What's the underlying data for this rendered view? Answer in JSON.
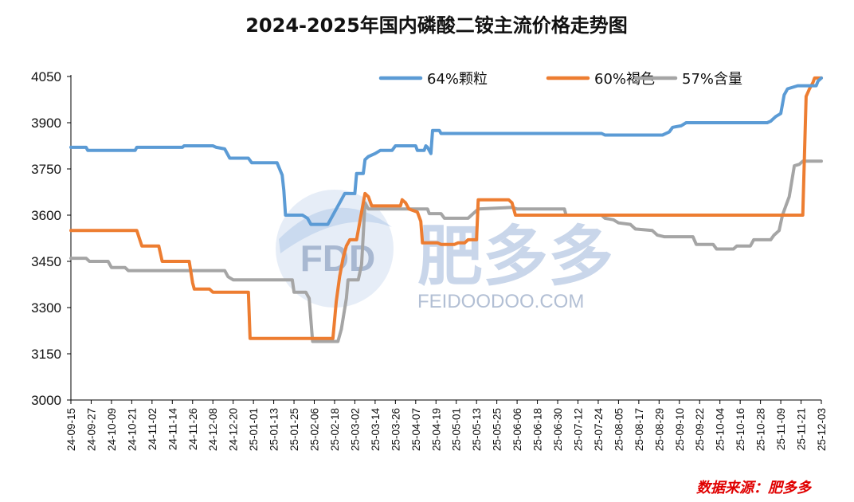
{
  "chart_data": {
    "type": "line",
    "title": "2024-2025年国内磷酸二铵主流价格走势图",
    "source": "数据来源：肥多多",
    "ylim": [
      3000,
      4050
    ],
    "yticks": [
      3000,
      3150,
      3300,
      3450,
      3600,
      3750,
      3900,
      4050
    ],
    "xlim": [
      "2024-09-15",
      "2025-12-03"
    ],
    "xtick_labels": [
      "24-09-15",
      "24-09-27",
      "24-10-09",
      "24-10-21",
      "24-11-02",
      "24-11-14",
      "24-11-26",
      "24-12-08",
      "24-12-20",
      "25-01-01",
      "25-01-13",
      "25-01-25",
      "25-02-06",
      "25-02-18",
      "25-03-02",
      "25-03-14",
      "25-03-26",
      "25-04-07",
      "25-04-19",
      "25-05-01",
      "25-05-13",
      "25-05-25",
      "25-06-06",
      "25-06-18",
      "25-06-30",
      "25-07-12",
      "25-07-24",
      "25-08-05",
      "25-08-17",
      "25-08-29",
      "25-09-10",
      "25-09-22",
      "25-10-04",
      "25-10-16",
      "25-10-28",
      "25-11-09",
      "25-11-21",
      "25-12-03"
    ],
    "grid": false,
    "legend_position": "top-right",
    "series": [
      {
        "name": "64%颗粒",
        "color": "#5b9bd5",
        "points": [
          [
            "2024-09-15",
            3820
          ],
          [
            "2024-09-24",
            3820
          ],
          [
            "2024-09-25",
            3810
          ],
          [
            "2024-10-23",
            3810
          ],
          [
            "2024-10-24",
            3820
          ],
          [
            "2024-11-20",
            3820
          ],
          [
            "2024-11-21",
            3825
          ],
          [
            "2024-12-08",
            3825
          ],
          [
            "2024-12-10",
            3820
          ],
          [
            "2024-12-15",
            3815
          ],
          [
            "2024-12-18",
            3785
          ],
          [
            "2024-12-29",
            3785
          ],
          [
            "2024-12-31",
            3770
          ],
          [
            "2025-01-15",
            3770
          ],
          [
            "2025-01-18",
            3730
          ],
          [
            "2025-01-19",
            3680
          ],
          [
            "2025-01-20",
            3600
          ],
          [
            "2025-01-30",
            3600
          ],
          [
            "2025-02-02",
            3590
          ],
          [
            "2025-02-04",
            3570
          ],
          [
            "2025-02-14",
            3570
          ],
          [
            "2025-02-16",
            3590
          ],
          [
            "2025-02-19",
            3620
          ],
          [
            "2025-02-22",
            3650
          ],
          [
            "2025-02-24",
            3670
          ],
          [
            "2025-03-02",
            3670
          ],
          [
            "2025-03-03",
            3735
          ],
          [
            "2025-03-07",
            3735
          ],
          [
            "2025-03-08",
            3780
          ],
          [
            "2025-03-10",
            3790
          ],
          [
            "2025-03-14",
            3800
          ],
          [
            "2025-03-17",
            3810
          ],
          [
            "2025-03-24",
            3810
          ],
          [
            "2025-03-26",
            3825
          ],
          [
            "2025-04-07",
            3825
          ],
          [
            "2025-04-08",
            3810
          ],
          [
            "2025-04-12",
            3810
          ],
          [
            "2025-04-13",
            3825
          ],
          [
            "2025-04-14",
            3820
          ],
          [
            "2025-04-16",
            3800
          ],
          [
            "2025-04-17",
            3875
          ],
          [
            "2025-04-21",
            3875
          ],
          [
            "2025-04-22",
            3865
          ],
          [
            "2025-07-26",
            3865
          ],
          [
            "2025-07-28",
            3860
          ],
          [
            "2025-08-31",
            3860
          ],
          [
            "2025-09-04",
            3870
          ],
          [
            "2025-09-06",
            3885
          ],
          [
            "2025-09-11",
            3890
          ],
          [
            "2025-09-14",
            3900
          ],
          [
            "2025-11-01",
            3900
          ],
          [
            "2025-11-03",
            3905
          ],
          [
            "2025-11-06",
            3920
          ],
          [
            "2025-11-09",
            3930
          ],
          [
            "2025-11-11",
            3990
          ],
          [
            "2025-11-13",
            4010
          ],
          [
            "2025-11-19",
            4020
          ],
          [
            "2025-11-30",
            4020
          ],
          [
            "2025-12-01",
            4035
          ],
          [
            "2025-12-03",
            4045
          ]
        ]
      },
      {
        "name": "60%褐色",
        "color": "#ed7d31",
        "points": [
          [
            "2024-09-15",
            3550
          ],
          [
            "2024-10-24",
            3550
          ],
          [
            "2024-10-27",
            3500
          ],
          [
            "2024-11-06",
            3500
          ],
          [
            "2024-11-08",
            3450
          ],
          [
            "2024-11-24",
            3450
          ],
          [
            "2024-11-26",
            3380
          ],
          [
            "2024-11-27",
            3360
          ],
          [
            "2024-12-06",
            3360
          ],
          [
            "2024-12-08",
            3350
          ],
          [
            "2024-12-29",
            3350
          ],
          [
            "2024-12-30",
            3200
          ],
          [
            "2025-02-17",
            3200
          ],
          [
            "2025-02-19",
            3320
          ],
          [
            "2025-02-21",
            3400
          ],
          [
            "2025-02-23",
            3460
          ],
          [
            "2025-02-25",
            3500
          ],
          [
            "2025-02-27",
            3520
          ],
          [
            "2025-03-03",
            3520
          ],
          [
            "2025-03-05",
            3580
          ],
          [
            "2025-03-07",
            3640
          ],
          [
            "2025-03-08",
            3670
          ],
          [
            "2025-03-10",
            3660
          ],
          [
            "2025-03-12",
            3630
          ],
          [
            "2025-03-29",
            3630
          ],
          [
            "2025-03-30",
            3650
          ],
          [
            "2025-04-01",
            3640
          ],
          [
            "2025-04-03",
            3620
          ],
          [
            "2025-04-08",
            3610
          ],
          [
            "2025-04-10",
            3580
          ],
          [
            "2025-04-11",
            3510
          ],
          [
            "2025-04-20",
            3510
          ],
          [
            "2025-04-22",
            3505
          ],
          [
            "2025-04-30",
            3505
          ],
          [
            "2025-05-02",
            3510
          ],
          [
            "2025-05-06",
            3510
          ],
          [
            "2025-05-08",
            3520
          ],
          [
            "2025-05-13",
            3520
          ],
          [
            "2025-05-14",
            3650
          ],
          [
            "2025-06-01",
            3650
          ],
          [
            "2025-06-03",
            3640
          ],
          [
            "2025-06-05",
            3600
          ],
          [
            "2025-11-22",
            3600
          ],
          [
            "2025-11-24",
            3985
          ],
          [
            "2025-11-26",
            4010
          ],
          [
            "2025-11-28",
            4030
          ],
          [
            "2025-11-29",
            4045
          ],
          [
            "2025-12-03",
            4045
          ]
        ]
      },
      {
        "name": "57%含量",
        "color": "#a5a5a5",
        "points": [
          [
            "2024-09-15",
            3460
          ],
          [
            "2024-09-24",
            3460
          ],
          [
            "2024-09-26",
            3450
          ],
          [
            "2024-10-07",
            3450
          ],
          [
            "2024-10-09",
            3430
          ],
          [
            "2024-10-17",
            3430
          ],
          [
            "2024-10-19",
            3420
          ],
          [
            "2024-12-15",
            3420
          ],
          [
            "2024-12-17",
            3400
          ],
          [
            "2024-12-20",
            3390
          ],
          [
            "2025-01-24",
            3390
          ],
          [
            "2025-01-25",
            3350
          ],
          [
            "2025-02-01",
            3350
          ],
          [
            "2025-02-03",
            3330
          ],
          [
            "2025-02-05",
            3190
          ],
          [
            "2025-02-20",
            3190
          ],
          [
            "2025-02-22",
            3230
          ],
          [
            "2025-02-25",
            3330
          ],
          [
            "2025-02-26",
            3390
          ],
          [
            "2025-03-04",
            3390
          ],
          [
            "2025-03-06",
            3440
          ],
          [
            "2025-03-08",
            3640
          ],
          [
            "2025-03-10",
            3620
          ],
          [
            "2025-04-14",
            3620
          ],
          [
            "2025-04-15",
            3605
          ],
          [
            "2025-04-22",
            3605
          ],
          [
            "2025-04-24",
            3590
          ],
          [
            "2025-05-08",
            3590
          ],
          [
            "2025-05-10",
            3600
          ],
          [
            "2025-05-14",
            3620
          ],
          [
            "2025-06-03",
            3625
          ],
          [
            "2025-06-06",
            3620
          ],
          [
            "2025-07-04",
            3620
          ],
          [
            "2025-07-05",
            3600
          ],
          [
            "2025-07-26",
            3600
          ],
          [
            "2025-07-28",
            3590
          ],
          [
            "2025-08-02",
            3585
          ],
          [
            "2025-08-05",
            3575
          ],
          [
            "2025-08-12",
            3570
          ],
          [
            "2025-08-15",
            3555
          ],
          [
            "2025-08-25",
            3550
          ],
          [
            "2025-08-28",
            3535
          ],
          [
            "2025-09-01",
            3530
          ],
          [
            "2025-09-18",
            3530
          ],
          [
            "2025-09-20",
            3505
          ],
          [
            "2025-09-30",
            3505
          ],
          [
            "2025-10-02",
            3490
          ],
          [
            "2025-10-12",
            3490
          ],
          [
            "2025-10-14",
            3500
          ],
          [
            "2025-10-22",
            3500
          ],
          [
            "2025-10-24",
            3520
          ],
          [
            "2025-11-03",
            3520
          ],
          [
            "2025-11-05",
            3535
          ],
          [
            "2025-11-08",
            3550
          ],
          [
            "2025-11-10",
            3600
          ],
          [
            "2025-11-12",
            3630
          ],
          [
            "2025-11-14",
            3660
          ],
          [
            "2025-11-17",
            3760
          ],
          [
            "2025-11-20",
            3765
          ],
          [
            "2025-11-22",
            3775
          ],
          [
            "2025-12-03",
            3775
          ]
        ]
      }
    ]
  },
  "watermark": {
    "logo_text": "FDD",
    "brand_cn": "肥多多",
    "brand_en": "FEIDOODOO.COM"
  }
}
